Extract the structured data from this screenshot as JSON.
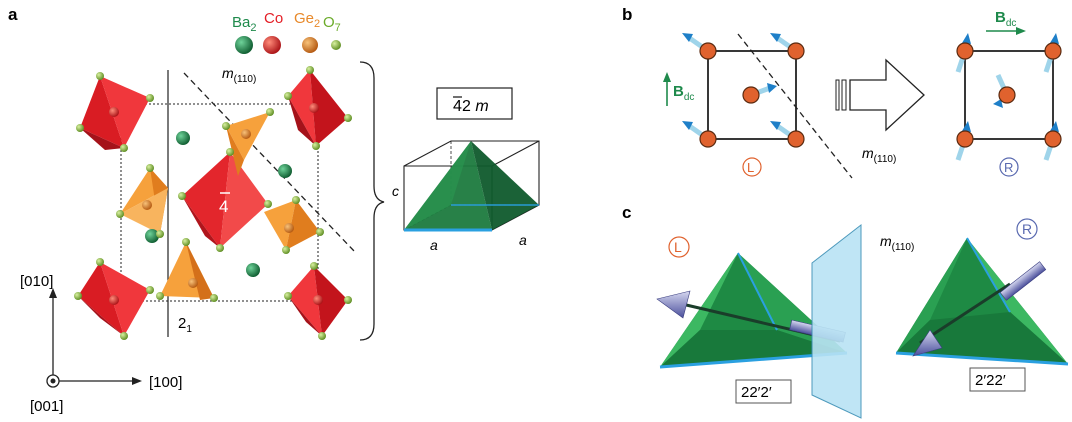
{
  "panels": {
    "a": "a",
    "b": "b",
    "c": "c"
  },
  "legend": {
    "ba": "Ba",
    "ba_sub": "2",
    "co": "Co",
    "ge": "Ge",
    "ge_sub": "2",
    "o": "O",
    "o_sub": "7",
    "colors": {
      "ba": "#1f8a4c",
      "co": "#e41e26",
      "ge": "#e8892a",
      "o": "#8cc640"
    }
  },
  "panel_a": {
    "mirror": "m",
    "mirror_sub": "(110)",
    "four_bar": "4",
    "screw": "2",
    "screw_sub": "1",
    "axis_y": "[010]",
    "axis_x": "[100]",
    "axis_z": "[001]",
    "point_group": "42 m",
    "point_group_bar": "4",
    "edge_c": "c",
    "edge_a1": "a",
    "edge_a2": "a"
  },
  "panel_b": {
    "bdc_left": "B",
    "bdc_left_sub": "dc",
    "bdc_right": "B",
    "bdc_right_sub": "dc",
    "mirror": "m",
    "mirror_sub": "(110)",
    "left_label": "L",
    "right_label": "R"
  },
  "panel_c": {
    "left_label": "L",
    "right_label": "R",
    "mirror": "m",
    "mirror_sub": "(110)",
    "left_symmetry": "22′2′",
    "right_symmetry": "2′22′"
  }
}
